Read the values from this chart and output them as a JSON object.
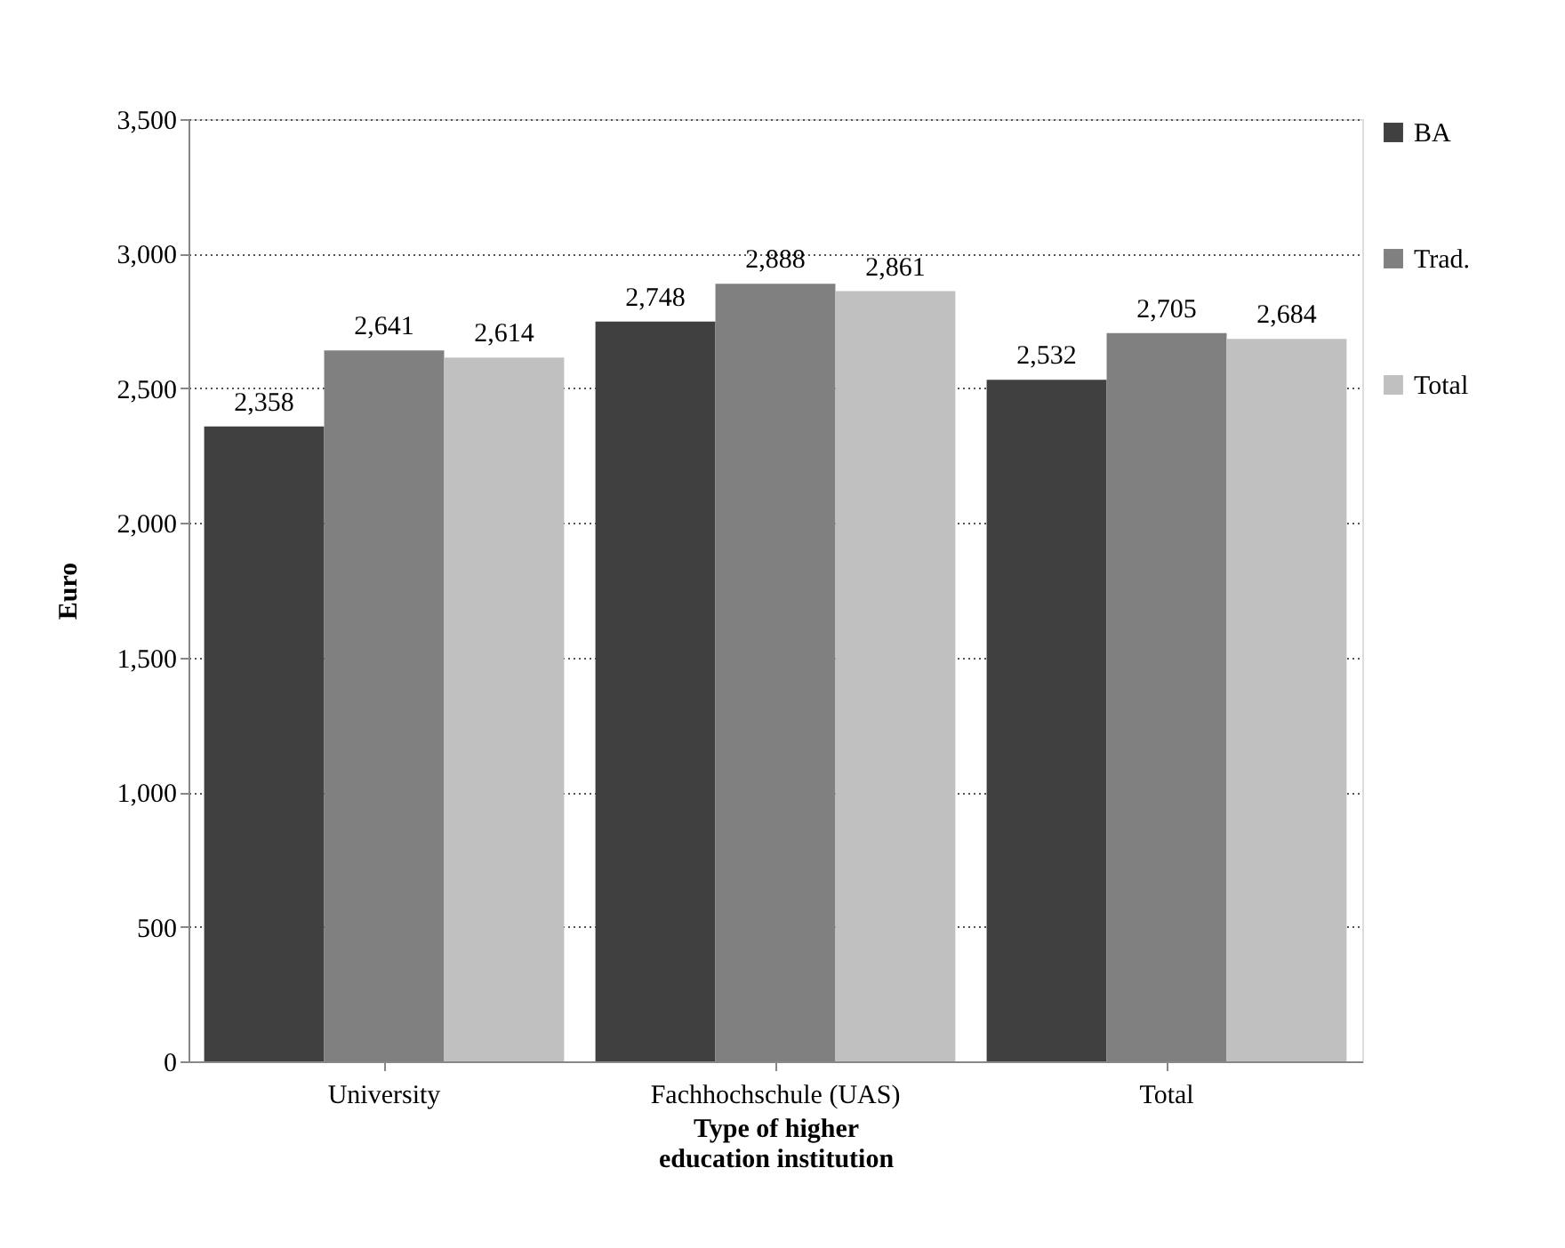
{
  "chart_data": {
    "type": "bar",
    "xlabel": "Type of higher education institution",
    "ylabel": "Euro",
    "categories": [
      "University",
      "Fachhochschule (UAS)",
      "Total"
    ],
    "series": [
      {
        "name": "BA",
        "color": "#404040",
        "values": [
          2358,
          2748,
          2532
        ],
        "value_labels": [
          "2,358",
          "2,748",
          "2,532"
        ]
      },
      {
        "name": "Trad.",
        "color": "#808080",
        "values": [
          2641,
          2888,
          2705
        ],
        "value_labels": [
          "2,641",
          "2,888",
          "2,705"
        ]
      },
      {
        "name": "Total",
        "color": "#c0c0c0",
        "values": [
          2614,
          2861,
          2684
        ],
        "value_labels": [
          "2,614",
          "2,861",
          "2,684"
        ]
      }
    ],
    "ylim": [
      0,
      3500
    ],
    "yticks": [
      {
        "value": 0,
        "label": "0"
      },
      {
        "value": 500,
        "label": "500"
      },
      {
        "value": 1000,
        "label": "1,000"
      },
      {
        "value": 1500,
        "label": "1,500"
      },
      {
        "value": 2000,
        "label": "2,000"
      },
      {
        "value": 2500,
        "label": "2,500"
      },
      {
        "value": 3000,
        "label": "3,000"
      },
      {
        "value": 3500,
        "label": "3,500"
      }
    ],
    "grid": "y",
    "legend": "right"
  }
}
